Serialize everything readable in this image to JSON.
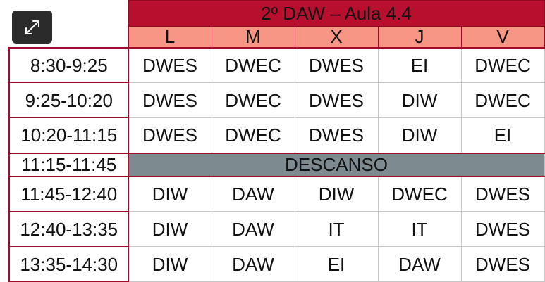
{
  "title": "2º DAW –  Aula 4.4",
  "days": [
    "L",
    "M",
    "X",
    "J",
    "V"
  ],
  "rows_before_break": [
    {
      "time": "8:30-9:25",
      "subjects": [
        "DWES",
        "DWEC",
        "DWES",
        "EI",
        "DWEC"
      ]
    },
    {
      "time": "9:25-10:20",
      "subjects": [
        "DWES",
        "DWEC",
        "DWES",
        "DIW",
        "DWEC"
      ]
    },
    {
      "time": "10:20-11:15",
      "subjects": [
        "DWES",
        "DWEC",
        "DWES",
        "DIW",
        "EI"
      ]
    }
  ],
  "break": {
    "time": "11:15-11:45",
    "label": "DESCANSO"
  },
  "rows_after_break": [
    {
      "time": "11:45-12:40",
      "subjects": [
        "DIW",
        "DAW",
        "DIW",
        "DWEC",
        "DWES"
      ]
    },
    {
      "time": "12:40-13:35",
      "subjects": [
        "DIW",
        "DAW",
        "IT",
        "IT",
        "DWES"
      ]
    },
    {
      "time": "13:35-14:30",
      "subjects": [
        "DIW",
        "DAW",
        "EI",
        "DAW",
        "DWES"
      ]
    }
  ],
  "colors": {
    "title_bg": "#b80f2e",
    "day_header_bg": "#f79684",
    "break_bg": "#7d8a8f",
    "border_accent": "#9e0c2a",
    "expand_button_bg": "#2b2b2b"
  },
  "icons": {
    "expand": "expand-arrows-icon"
  }
}
